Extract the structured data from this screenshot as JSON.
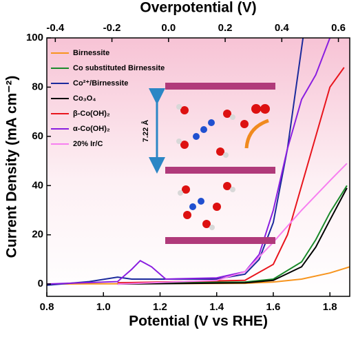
{
  "chart_data": {
    "type": "line",
    "xlabel": "Potential (V vs RHE)",
    "ylabel": "Current Density (mA cm⁻²)",
    "x2label": "Overpotential (V)",
    "annotation": "7.22 Å",
    "xlim": [
      0.8,
      1.87
    ],
    "xticks": [
      0.8,
      {
        "value": 1.0,
        "label": "1.0"
      },
      1.2,
      1.4,
      1.6,
      1.8
    ],
    "x2lim": [
      -0.43,
      0.64
    ],
    "x2ticks": [
      -0.4,
      -0.2,
      {
        "value": 0,
        "label": "0.0"
      },
      0.2,
      0.4,
      0.6
    ],
    "ylim": [
      -5,
      100
    ],
    "yticks": [
      0,
      20,
      40,
      60,
      80,
      100
    ],
    "legend": "upper left",
    "series": [
      {
        "name": "Birnessite",
        "color": "#f7941d",
        "x": [
          0.8,
          1.5,
          1.6,
          1.7,
          1.8,
          1.87
        ],
        "values": [
          0,
          0.3,
          0.8,
          2,
          4.5,
          7
        ]
      },
      {
        "name": "Co substituted Birnessite",
        "color": "#1a8a2a",
        "x": [
          1.05,
          1.5,
          1.6,
          1.7,
          1.75,
          1.8,
          1.86
        ],
        "values": [
          0.5,
          0.8,
          2,
          9,
          18,
          29,
          40
        ]
      },
      {
        "name": "Co²⁺/Birnessite",
        "color": "#1b2a9c",
        "x": [
          0.8,
          0.95,
          1.05,
          1.1,
          1.4,
          1.5,
          1.55,
          1.6,
          1.65,
          1.705
        ],
        "values": [
          -0.5,
          1,
          2.8,
          2,
          2,
          4,
          10,
          25,
          55,
          100
        ]
      },
      {
        "name": "Co₃O₄",
        "color": "#000000",
        "x": [
          1.05,
          1.5,
          1.6,
          1.7,
          1.75,
          1.8,
          1.86
        ],
        "values": [
          0,
          0.5,
          1.5,
          7,
          15,
          26,
          39
        ]
      },
      {
        "name": "β-Co(OH)₂",
        "color": "#e8141c",
        "x": [
          1.05,
          1.5,
          1.6,
          1.65,
          1.7,
          1.75,
          1.8,
          1.85
        ],
        "values": [
          0.5,
          1.5,
          8,
          20,
          40,
          60,
          80,
          88
        ]
      },
      {
        "name": "α-Co(OH)₂",
        "color": "#8a1ee0",
        "x": [
          0.8,
          1.05,
          1.1,
          1.13,
          1.17,
          1.22,
          1.4,
          1.5,
          1.55,
          1.6,
          1.65,
          1.7,
          1.75,
          1.8
        ],
        "values": [
          0,
          1,
          6,
          9.5,
          7,
          2,
          2.5,
          5,
          12,
          30,
          55,
          75,
          85,
          100
        ]
      },
      {
        "name": "20% Ir/C",
        "color": "#f77ef0",
        "x": [
          1.05,
          1.4,
          1.5,
          1.6,
          1.7,
          1.8,
          1.86
        ],
        "values": [
          0,
          1.5,
          5,
          17,
          30,
          42,
          49
        ]
      }
    ]
  }
}
